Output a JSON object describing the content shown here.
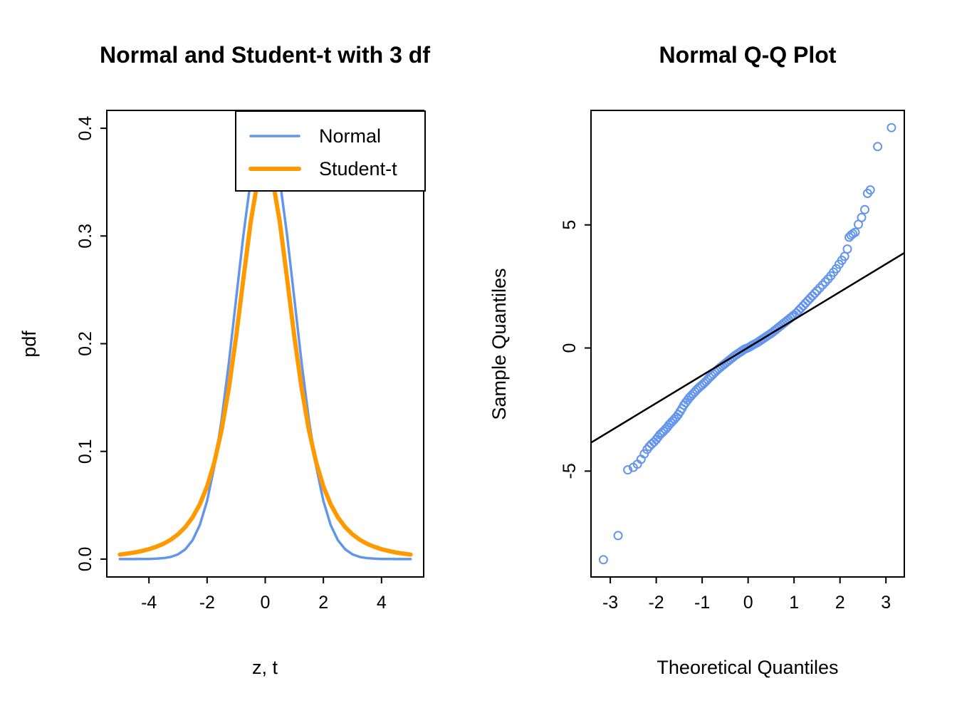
{
  "page": {
    "background": "#FFFFFF"
  },
  "chart_data": [
    {
      "type": "line",
      "title": "Normal and Student-t with 3 df",
      "xlabel": "z, t",
      "ylabel": "pdf",
      "xlim": [
        -5.45,
        5.45
      ],
      "ylim": [
        -0.0166,
        0.4166
      ],
      "x_ticks": [
        -4,
        -2,
        0,
        2,
        4
      ],
      "y_ticks": [
        0,
        0.1,
        0.2,
        0.3,
        0.4
      ],
      "y_tick_labels": [
        "0.0",
        "0.1",
        "0.2",
        "0.3",
        "0.4"
      ],
      "grid": false,
      "legend_position": "top-right-inside",
      "x": [
        -5,
        -4.75,
        -4.5,
        -4.25,
        -4,
        -3.75,
        -3.5,
        -3.25,
        -3,
        -2.75,
        -2.5,
        -2.25,
        -2,
        -1.75,
        -1.5,
        -1.25,
        -1,
        -0.75,
        -0.5,
        -0.25,
        0,
        0.25,
        0.5,
        0.75,
        1,
        1.25,
        1.5,
        1.75,
        2,
        2.25,
        2.5,
        2.75,
        3,
        3.25,
        3.5,
        3.75,
        4,
        4.25,
        4.5,
        4.75,
        5
      ],
      "series": [
        {
          "name": "Normal",
          "color": "#6495ED",
          "stroke_width": 3.5,
          "y": [
            0.0,
            0.0,
            0.0,
            0.0001,
            0.0001,
            0.0004,
            0.0009,
            0.002,
            0.0044,
            0.0091,
            0.0175,
            0.0317,
            0.054,
            0.0863,
            0.1295,
            0.1826,
            0.242,
            0.3011,
            0.3521,
            0.3867,
            0.3989,
            0.3867,
            0.3521,
            0.3011,
            0.242,
            0.1826,
            0.1295,
            0.0863,
            0.054,
            0.0317,
            0.0175,
            0.0091,
            0.0044,
            0.002,
            0.0009,
            0.0004,
            0.0001,
            0.0001,
            0.0,
            0.0,
            0.0
          ]
        },
        {
          "name": "Student-t",
          "color": "#FF9900",
          "stroke_width": 6,
          "y": [
            0.0042,
            0.0051,
            0.0061,
            0.0075,
            0.0092,
            0.0114,
            0.0142,
            0.018,
            0.023,
            0.0297,
            0.0387,
            0.0509,
            0.0675,
            0.09,
            0.12,
            0.1589,
            0.2067,
            0.2607,
            0.3132,
            0.3527,
            0.3676,
            0.3527,
            0.3132,
            0.2607,
            0.2067,
            0.1589,
            0.12,
            0.09,
            0.0675,
            0.0509,
            0.0387,
            0.0297,
            0.023,
            0.018,
            0.0142,
            0.0114,
            0.0092,
            0.0075,
            0.0061,
            0.0051,
            0.0042
          ]
        }
      ]
    },
    {
      "type": "scatter",
      "title": "Normal Q-Q Plot",
      "xlabel": "Theoretical Quantiles",
      "ylabel": "Sample Quantiles",
      "xlim": [
        -3.42,
        3.4
      ],
      "ylim": [
        -9.3,
        9.65
      ],
      "x_ticks": [
        -3,
        -2,
        -1,
        0,
        1,
        2,
        3
      ],
      "y_ticks": [
        -5,
        0,
        5
      ],
      "y_tick_labels": [
        "-5",
        "0",
        "5"
      ],
      "grid": false,
      "point_color": "#6495ED",
      "reference_line": {
        "slope": 1.13,
        "intercept": 0.02,
        "color": "#000000"
      },
      "points": [
        [
          -3.15,
          -8.6
        ],
        [
          -2.83,
          -7.62
        ],
        [
          -2.62,
          -4.95
        ],
        [
          -2.5,
          -4.85
        ],
        [
          -2.41,
          -4.72
        ],
        [
          -2.33,
          -4.52
        ],
        [
          -2.26,
          -4.3
        ],
        [
          -2.2,
          -4.12
        ],
        [
          -2.15,
          -4.0
        ],
        [
          -2.1,
          -3.9
        ],
        [
          -2.05,
          -3.82
        ],
        [
          -2.0,
          -3.72
        ],
        [
          -1.96,
          -3.62
        ],
        [
          -1.92,
          -3.52
        ],
        [
          -1.88,
          -3.45
        ],
        [
          -1.84,
          -3.38
        ],
        [
          -1.8,
          -3.3
        ],
        [
          -1.76,
          -3.22
        ],
        [
          -1.72,
          -3.12
        ],
        [
          -1.68,
          -3.04
        ],
        [
          -1.64,
          -2.96
        ],
        [
          -1.6,
          -2.88
        ],
        [
          -1.56,
          -2.8
        ],
        [
          -1.52,
          -2.7
        ],
        [
          -1.48,
          -2.58
        ],
        [
          -1.44,
          -2.46
        ],
        [
          -1.4,
          -2.32
        ],
        [
          -1.36,
          -2.22
        ],
        [
          -1.32,
          -2.12
        ],
        [
          -1.28,
          -2.02
        ],
        [
          -1.24,
          -1.94
        ],
        [
          -1.2,
          -1.86
        ],
        [
          -1.16,
          -1.78
        ],
        [
          -1.12,
          -1.7
        ],
        [
          -1.08,
          -1.63
        ],
        [
          -1.04,
          -1.56
        ],
        [
          -1.0,
          -1.5
        ],
        [
          -0.96,
          -1.43
        ],
        [
          -0.92,
          -1.36
        ],
        [
          -0.88,
          -1.28
        ],
        [
          -0.84,
          -1.2
        ],
        [
          -0.8,
          -1.13
        ],
        [
          -0.76,
          -1.06
        ],
        [
          -0.72,
          -0.98
        ],
        [
          -0.68,
          -0.91
        ],
        [
          -0.64,
          -0.84
        ],
        [
          -0.6,
          -0.78
        ],
        [
          -0.56,
          -0.72
        ],
        [
          -0.52,
          -0.66
        ],
        [
          -0.48,
          -0.6
        ],
        [
          -0.44,
          -0.54
        ],
        [
          -0.4,
          -0.48
        ],
        [
          -0.36,
          -0.42
        ],
        [
          -0.32,
          -0.36
        ],
        [
          -0.28,
          -0.3
        ],
        [
          -0.24,
          -0.25
        ],
        [
          -0.2,
          -0.2
        ],
        [
          -0.16,
          -0.15
        ],
        [
          -0.12,
          -0.1
        ],
        [
          -0.08,
          -0.05
        ],
        [
          -0.04,
          -0.02
        ],
        [
          0.0,
          0.01
        ],
        [
          0.04,
          0.05
        ],
        [
          0.08,
          0.1
        ],
        [
          0.12,
          0.14
        ],
        [
          0.16,
          0.18
        ],
        [
          0.2,
          0.22
        ],
        [
          0.24,
          0.27
        ],
        [
          0.28,
          0.32
        ],
        [
          0.32,
          0.37
        ],
        [
          0.36,
          0.42
        ],
        [
          0.4,
          0.47
        ],
        [
          0.44,
          0.52
        ],
        [
          0.48,
          0.57
        ],
        [
          0.52,
          0.62
        ],
        [
          0.56,
          0.68
        ],
        [
          0.6,
          0.74
        ],
        [
          0.64,
          0.8
        ],
        [
          0.68,
          0.86
        ],
        [
          0.72,
          0.92
        ],
        [
          0.76,
          0.98
        ],
        [
          0.8,
          1.04
        ],
        [
          0.84,
          1.1
        ],
        [
          0.88,
          1.16
        ],
        [
          0.92,
          1.22
        ],
        [
          0.96,
          1.28
        ],
        [
          1.0,
          1.34
        ],
        [
          1.05,
          1.42
        ],
        [
          1.1,
          1.52
        ],
        [
          1.15,
          1.62
        ],
        [
          1.2,
          1.72
        ],
        [
          1.25,
          1.82
        ],
        [
          1.3,
          1.92
        ],
        [
          1.35,
          2.02
        ],
        [
          1.4,
          2.12
        ],
        [
          1.45,
          2.22
        ],
        [
          1.5,
          2.32
        ],
        [
          1.56,
          2.44
        ],
        [
          1.62,
          2.56
        ],
        [
          1.68,
          2.68
        ],
        [
          1.74,
          2.8
        ],
        [
          1.8,
          2.93
        ],
        [
          1.86,
          3.08
        ],
        [
          1.92,
          3.22
        ],
        [
          1.98,
          3.4
        ],
        [
          2.04,
          3.56
        ],
        [
          2.1,
          3.72
        ],
        [
          2.16,
          4.02
        ],
        [
          2.2,
          4.5
        ],
        [
          2.24,
          4.58
        ],
        [
          2.28,
          4.64
        ],
        [
          2.33,
          4.7
        ],
        [
          2.4,
          5.02
        ],
        [
          2.47,
          5.3
        ],
        [
          2.54,
          5.62
        ],
        [
          2.6,
          6.28
        ],
        [
          2.66,
          6.42
        ],
        [
          2.82,
          8.18
        ],
        [
          3.12,
          8.95
        ]
      ]
    }
  ]
}
